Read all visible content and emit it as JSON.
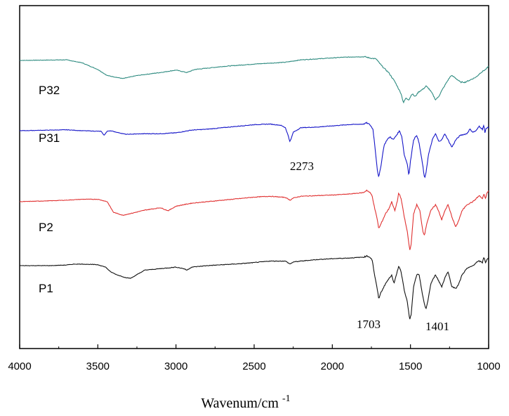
{
  "chart_data": {
    "type": "line",
    "title": "",
    "xlabel": "Wavenum/cm",
    "xlabel_superscript": "-1",
    "ylabel": "",
    "xlim": [
      4000,
      1000
    ],
    "x_reversed": true,
    "grid": false,
    "y_axis_ticks": false,
    "x_ticks": [
      4000,
      3500,
      3000,
      2500,
      2000,
      1500,
      1000
    ],
    "x_tick_labels": [
      "4000",
      "3500",
      "3000",
      "2500",
      "2000",
      "1500",
      "1000"
    ],
    "series": [
      {
        "name": "P32",
        "color": "#2e8b80",
        "baseline_offset": 4,
        "points": [
          [
            4000,
            0
          ],
          [
            3700,
            0.02
          ],
          [
            3600,
            -0.08
          ],
          [
            3500,
            -0.3
          ],
          [
            3440,
            -0.5
          ],
          [
            3340,
            -0.6
          ],
          [
            3250,
            -0.5
          ],
          [
            3100,
            -0.4
          ],
          [
            3000,
            -0.32
          ],
          [
            2930,
            -0.4
          ],
          [
            2880,
            -0.3
          ],
          [
            2700,
            -0.2
          ],
          [
            2500,
            -0.12
          ],
          [
            2300,
            -0.06
          ],
          [
            2200,
            0.02
          ],
          [
            2100,
            0.05
          ],
          [
            1950,
            0.1
          ],
          [
            1850,
            0.12
          ],
          [
            1790,
            0.12
          ],
          [
            1760,
            0.08
          ],
          [
            1720,
            0.05
          ],
          [
            1700,
            -0.08
          ],
          [
            1680,
            -0.2
          ],
          [
            1640,
            -0.4
          ],
          [
            1600,
            -0.7
          ],
          [
            1580,
            -0.9
          ],
          [
            1560,
            -1.1
          ],
          [
            1545,
            -1.4
          ],
          [
            1530,
            -1.25
          ],
          [
            1510,
            -1.3
          ],
          [
            1490,
            -1.1
          ],
          [
            1470,
            -1.2
          ],
          [
            1450,
            -1.05
          ],
          [
            1420,
            -0.95
          ],
          [
            1400,
            -0.85
          ],
          [
            1380,
            -0.95
          ],
          [
            1360,
            -1.1
          ],
          [
            1340,
            -1.3
          ],
          [
            1320,
            -1.2
          ],
          [
            1300,
            -1.0
          ],
          [
            1260,
            -0.65
          ],
          [
            1240,
            -0.5
          ],
          [
            1220,
            -0.55
          ],
          [
            1180,
            -0.72
          ],
          [
            1150,
            -0.72
          ],
          [
            1120,
            -0.65
          ],
          [
            1080,
            -0.55
          ],
          [
            1050,
            -0.4
          ],
          [
            1020,
            -0.3
          ],
          [
            1000,
            -0.2
          ]
        ]
      },
      {
        "name": "P31",
        "color": "#1515c8",
        "baseline_offset": 3,
        "points": [
          [
            4000,
            0
          ],
          [
            3800,
            0.02
          ],
          [
            3700,
            0.03
          ],
          [
            3600,
            0.0
          ],
          [
            3480,
            -0.02
          ],
          [
            3460,
            -0.15
          ],
          [
            3440,
            -0.02
          ],
          [
            3420,
            0.0
          ],
          [
            3380,
            -0.05
          ],
          [
            3320,
            -0.12
          ],
          [
            3200,
            -0.1
          ],
          [
            3100,
            -0.1
          ],
          [
            3000,
            -0.07
          ],
          [
            2900,
            0.02
          ],
          [
            2800,
            0.05
          ],
          [
            2700,
            0.1
          ],
          [
            2600,
            0.15
          ],
          [
            2500,
            0.2
          ],
          [
            2400,
            0.22
          ],
          [
            2330,
            0.18
          ],
          [
            2300,
            0.1
          ],
          [
            2280,
            -0.2
          ],
          [
            2273,
            -0.35
          ],
          [
            2265,
            -0.3
          ],
          [
            2250,
            -0.05
          ],
          [
            2200,
            0.1
          ],
          [
            2100,
            0.12
          ],
          [
            2000,
            0.16
          ],
          [
            1900,
            0.2
          ],
          [
            1800,
            0.22
          ],
          [
            1780,
            0.26
          ],
          [
            1760,
            0.2
          ],
          [
            1740,
            0.05
          ],
          [
            1730,
            -0.4
          ],
          [
            1720,
            -0.9
          ],
          [
            1712,
            -1.3
          ],
          [
            1703,
            -1.55
          ],
          [
            1690,
            -1.2
          ],
          [
            1670,
            -0.5
          ],
          [
            1650,
            -0.3
          ],
          [
            1630,
            -0.2
          ],
          [
            1610,
            -0.3
          ],
          [
            1590,
            -0.15
          ],
          [
            1570,
            0.0
          ],
          [
            1555,
            -0.2
          ],
          [
            1540,
            -0.8
          ],
          [
            1520,
            -1.1
          ],
          [
            1510,
            -1.5
          ],
          [
            1500,
            -1.0
          ],
          [
            1480,
            -0.3
          ],
          [
            1460,
            -0.15
          ],
          [
            1445,
            -0.4
          ],
          [
            1420,
            -1.2
          ],
          [
            1410,
            -1.6
          ],
          [
            1401,
            -1.4
          ],
          [
            1385,
            -0.8
          ],
          [
            1360,
            -0.3
          ],
          [
            1340,
            -0.1
          ],
          [
            1320,
            -0.35
          ],
          [
            1300,
            -0.3
          ],
          [
            1280,
            -0.1
          ],
          [
            1260,
            -0.3
          ],
          [
            1235,
            -0.55
          ],
          [
            1210,
            -0.3
          ],
          [
            1180,
            -0.15
          ],
          [
            1140,
            -0.1
          ],
          [
            1120,
            0.05
          ],
          [
            1100,
            -0.05
          ],
          [
            1080,
            0.0
          ],
          [
            1060,
            0.15
          ],
          [
            1040,
            0.05
          ],
          [
            1030,
            0.2
          ],
          [
            1025,
            -0.1
          ],
          [
            1015,
            0.1
          ],
          [
            1000,
            0.1
          ]
        ]
      },
      {
        "name": "P2",
        "color": "#e03030",
        "baseline_offset": 2,
        "points": [
          [
            4000,
            0
          ],
          [
            3800,
            0.03
          ],
          [
            3700,
            0.05
          ],
          [
            3600,
            0.08
          ],
          [
            3500,
            0.08
          ],
          [
            3440,
            0.0
          ],
          [
            3400,
            -0.35
          ],
          [
            3340,
            -0.45
          ],
          [
            3280,
            -0.38
          ],
          [
            3200,
            -0.28
          ],
          [
            3100,
            -0.2
          ],
          [
            3050,
            -0.3
          ],
          [
            3000,
            -0.15
          ],
          [
            2900,
            -0.05
          ],
          [
            2800,
            0.0
          ],
          [
            2700,
            0.05
          ],
          [
            2600,
            0.1
          ],
          [
            2500,
            0.15
          ],
          [
            2400,
            0.18
          ],
          [
            2300,
            0.14
          ],
          [
            2270,
            0.05
          ],
          [
            2250,
            0.12
          ],
          [
            2200,
            0.18
          ],
          [
            2100,
            0.2
          ],
          [
            2000,
            0.22
          ],
          [
            1900,
            0.25
          ],
          [
            1800,
            0.3
          ],
          [
            1780,
            0.38
          ],
          [
            1760,
            0.3
          ],
          [
            1745,
            0.2
          ],
          [
            1730,
            -0.2
          ],
          [
            1712,
            -0.6
          ],
          [
            1703,
            -0.9
          ],
          [
            1690,
            -0.75
          ],
          [
            1660,
            -0.4
          ],
          [
            1640,
            -0.25
          ],
          [
            1620,
            0.0
          ],
          [
            1600,
            -0.3
          ],
          [
            1585,
            0.0
          ],
          [
            1575,
            0.3
          ],
          [
            1560,
            0.1
          ],
          [
            1540,
            -0.5
          ],
          [
            1520,
            -1.0
          ],
          [
            1505,
            -1.6
          ],
          [
            1495,
            -1.4
          ],
          [
            1480,
            -0.4
          ],
          [
            1460,
            -0.1
          ],
          [
            1440,
            -0.3
          ],
          [
            1420,
            -1.0
          ],
          [
            1410,
            -1.1
          ],
          [
            1395,
            -0.7
          ],
          [
            1370,
            -0.3
          ],
          [
            1340,
            -0.1
          ],
          [
            1320,
            -0.3
          ],
          [
            1300,
            -0.6
          ],
          [
            1280,
            -0.3
          ],
          [
            1260,
            -0.1
          ],
          [
            1235,
            -0.5
          ],
          [
            1210,
            -0.85
          ],
          [
            1190,
            -0.6
          ],
          [
            1170,
            -0.3
          ],
          [
            1140,
            -0.1
          ],
          [
            1100,
            0.0
          ],
          [
            1080,
            0.1
          ],
          [
            1060,
            0.2
          ],
          [
            1040,
            0.1
          ],
          [
            1030,
            0.25
          ],
          [
            1020,
            0.1
          ],
          [
            1010,
            0.3
          ],
          [
            1000,
            0.35
          ]
        ]
      },
      {
        "name": "P1",
        "color": "#101010",
        "baseline_offset": 1,
        "points": [
          [
            4000,
            0
          ],
          [
            3800,
            0.0
          ],
          [
            3700,
            0.02
          ],
          [
            3650,
            0.05
          ],
          [
            3600,
            0.05
          ],
          [
            3500,
            0.03
          ],
          [
            3450,
            -0.05
          ],
          [
            3420,
            -0.2
          ],
          [
            3380,
            -0.3
          ],
          [
            3320,
            -0.4
          ],
          [
            3290,
            -0.42
          ],
          [
            3250,
            -0.3
          ],
          [
            3200,
            -0.15
          ],
          [
            3100,
            -0.1
          ],
          [
            3000,
            -0.05
          ],
          [
            2950,
            -0.1
          ],
          [
            2930,
            -0.15
          ],
          [
            2900,
            -0.05
          ],
          [
            2800,
            0.0
          ],
          [
            2700,
            0.03
          ],
          [
            2600,
            0.06
          ],
          [
            2500,
            0.1
          ],
          [
            2400,
            0.15
          ],
          [
            2300,
            0.15
          ],
          [
            2270,
            0.05
          ],
          [
            2250,
            0.12
          ],
          [
            2200,
            0.15
          ],
          [
            2100,
            0.2
          ],
          [
            2000,
            0.23
          ],
          [
            1900,
            0.25
          ],
          [
            1800,
            0.28
          ],
          [
            1780,
            0.32
          ],
          [
            1760,
            0.28
          ],
          [
            1745,
            0.2
          ],
          [
            1730,
            -0.3
          ],
          [
            1712,
            -0.8
          ],
          [
            1703,
            -1.1
          ],
          [
            1690,
            -0.9
          ],
          [
            1660,
            -0.6
          ],
          [
            1640,
            -0.45
          ],
          [
            1620,
            -0.3
          ],
          [
            1605,
            -0.6
          ],
          [
            1590,
            -0.3
          ],
          [
            1575,
            0.0
          ],
          [
            1560,
            -0.2
          ],
          [
            1540,
            -0.8
          ],
          [
            1520,
            -1.2
          ],
          [
            1505,
            -1.8
          ],
          [
            1495,
            -1.6
          ],
          [
            1480,
            -0.7
          ],
          [
            1460,
            -0.3
          ],
          [
            1445,
            -0.3
          ],
          [
            1425,
            -0.9
          ],
          [
            1410,
            -1.3
          ],
          [
            1401,
            -1.45
          ],
          [
            1390,
            -1.2
          ],
          [
            1370,
            -0.6
          ],
          [
            1340,
            -0.3
          ],
          [
            1320,
            -0.5
          ],
          [
            1300,
            -0.7
          ],
          [
            1280,
            -0.4
          ],
          [
            1260,
            -0.2
          ],
          [
            1235,
            -0.7
          ],
          [
            1210,
            -0.75
          ],
          [
            1190,
            -0.6
          ],
          [
            1170,
            -0.3
          ],
          [
            1140,
            -0.1
          ],
          [
            1100,
            0.0
          ],
          [
            1080,
            0.1
          ],
          [
            1060,
            0.15
          ],
          [
            1040,
            0.1
          ],
          [
            1030,
            0.3
          ],
          [
            1020,
            0.1
          ],
          [
            1010,
            0.2
          ],
          [
            1000,
            0.25
          ]
        ]
      }
    ],
    "annotations": [
      {
        "text": "2273"
      },
      {
        "text": "1703"
      },
      {
        "text": "1401"
      }
    ]
  }
}
